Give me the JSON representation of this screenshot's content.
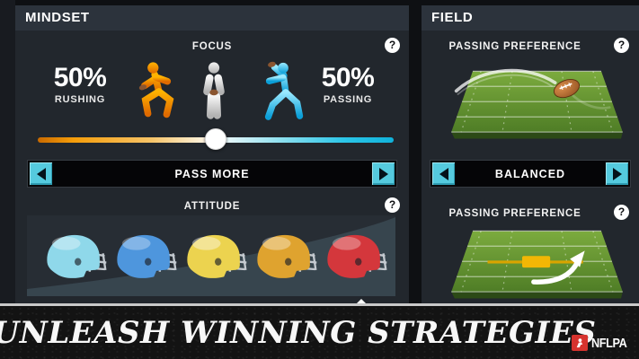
{
  "colors": {
    "accent_cyan": "#55cade",
    "slider_orange": "#f08c00",
    "slider_cyan": "#1fc3e8",
    "helmets": [
      "#8fd8ea",
      "#4e96dd",
      "#ecd34f",
      "#dfa32f",
      "#d4373c"
    ],
    "field_green": "#628f31",
    "nflpa_red": "#d6332e"
  },
  "mindset": {
    "title": "MINDSET",
    "focus": {
      "label": "FOCUS",
      "rushing_value": "50%",
      "rushing_label": "RUSHING",
      "passing_value": "50%",
      "passing_label": "PASSING",
      "slider_percent": 50
    },
    "focus_selector": {
      "value": "PASS MORE"
    },
    "attitude": {
      "label": "ATTITUDE"
    }
  },
  "field": {
    "title": "FIELD",
    "section1_label": "PASSING PREFERENCE",
    "selector": {
      "value": "BALANCED"
    },
    "section2_label": "PASSING PREFERENCE"
  },
  "banner": {
    "headline": "UNLEASH WINNING STRATEGIES",
    "logo": "NFLPA"
  }
}
